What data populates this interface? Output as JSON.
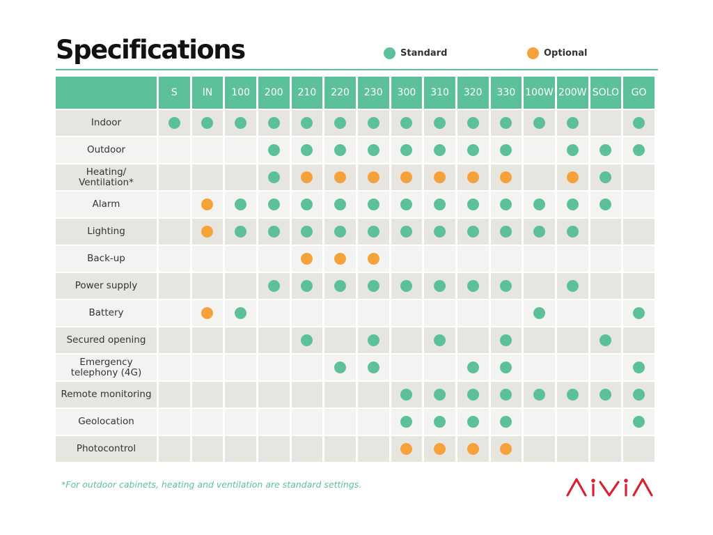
{
  "title": "Specifications",
  "legend": {
    "standard": {
      "label": "Standard",
      "color": "#5cc198"
    },
    "optional": {
      "label": "Optional",
      "color": "#f5a23a"
    }
  },
  "columns": [
    "S",
    "IN",
    "100",
    "200",
    "210",
    "220",
    "230",
    "300",
    "310",
    "320",
    "330",
    "100W",
    "200W",
    "SOLO",
    "GO"
  ],
  "rows": [
    {
      "label": "Indoor",
      "cells": [
        "s",
        "s",
        "s",
        "s",
        "s",
        "s",
        "s",
        "s",
        "s",
        "s",
        "s",
        "s",
        "s",
        "",
        "s"
      ]
    },
    {
      "label": "Outdoor",
      "cells": [
        "",
        "",
        "",
        "s",
        "s",
        "s",
        "s",
        "s",
        "s",
        "s",
        "s",
        "",
        "s",
        "s",
        "s"
      ]
    },
    {
      "label": "Heating/\nVentilation*",
      "cells": [
        "",
        "",
        "",
        "s",
        "o",
        "o",
        "o",
        "o",
        "o",
        "o",
        "o",
        "",
        "o",
        "s",
        ""
      ]
    },
    {
      "label": "Alarm",
      "cells": [
        "",
        "o",
        "s",
        "s",
        "s",
        "s",
        "s",
        "s",
        "s",
        "s",
        "s",
        "s",
        "s",
        "s",
        ""
      ]
    },
    {
      "label": "Lighting",
      "cells": [
        "",
        "o",
        "s",
        "s",
        "s",
        "s",
        "s",
        "s",
        "s",
        "s",
        "s",
        "s",
        "s",
        "",
        ""
      ]
    },
    {
      "label": "Back-up",
      "cells": [
        "",
        "",
        "",
        "",
        "o",
        "o",
        "o",
        "",
        "",
        "",
        "",
        "",
        "",
        "",
        ""
      ]
    },
    {
      "label": "Power supply",
      "cells": [
        "",
        "",
        "",
        "s",
        "s",
        "s",
        "s",
        "s",
        "s",
        "s",
        "s",
        "",
        "s",
        "",
        ""
      ]
    },
    {
      "label": "Battery",
      "cells": [
        "",
        "o",
        "s",
        "",
        "",
        "",
        "",
        "",
        "",
        "",
        "",
        "s",
        "",
        "",
        "s"
      ]
    },
    {
      "label": "Secured opening",
      "cells": [
        "",
        "",
        "",
        "",
        "s",
        "",
        "s",
        "",
        "s",
        "",
        "s",
        "",
        "",
        "s",
        ""
      ]
    },
    {
      "label": "Emergency\ntelephony (4G)",
      "cells": [
        "",
        "",
        "",
        "",
        "",
        "s",
        "s",
        "",
        "",
        "s",
        "s",
        "",
        "",
        "",
        "s"
      ]
    },
    {
      "label": "Remote monitoring",
      "cells": [
        "",
        "",
        "",
        "",
        "",
        "",
        "",
        "s",
        "s",
        "s",
        "s",
        "s",
        "s",
        "s",
        "s"
      ]
    },
    {
      "label": "Geolocation",
      "cells": [
        "",
        "",
        "",
        "",
        "",
        "",
        "",
        "s",
        "s",
        "s",
        "s",
        "",
        "",
        "",
        "s"
      ]
    },
    {
      "label": "Photocontrol",
      "cells": [
        "",
        "",
        "",
        "",
        "",
        "",
        "",
        "o",
        "o",
        "o",
        "o",
        "",
        "",
        "",
        ""
      ]
    }
  ],
  "footnote": "*For outdoor cabinets, heating and ventilation are standard settings.",
  "logo": {
    "text": "AIVIA",
    "color": "#d7212e"
  }
}
